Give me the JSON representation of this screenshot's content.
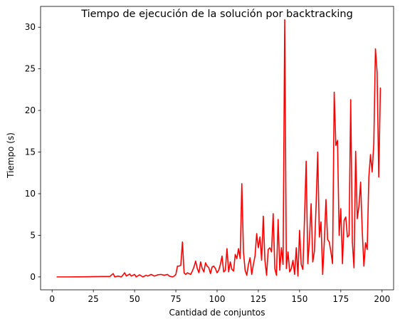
{
  "chart_data": {
    "type": "line",
    "title": "Tiempo de ejecución de la solución por backtracking",
    "xlabel": "Cantidad de conjuntos",
    "ylabel": "Tiempo (s)",
    "xlim": [
      -7,
      207
    ],
    "ylim": [
      -1.55,
      32.5
    ],
    "xticks": [
      0,
      25,
      50,
      75,
      100,
      125,
      150,
      175,
      200
    ],
    "yticks": [
      0,
      5,
      10,
      15,
      20,
      25,
      30
    ],
    "grid": false,
    "series": [
      {
        "color": "#ff0000",
        "points": [
          [
            3,
            0.0
          ],
          [
            10,
            0.0
          ],
          [
            20,
            0.02
          ],
          [
            30,
            0.05
          ],
          [
            35,
            0.05
          ],
          [
            37,
            0.4
          ],
          [
            38,
            0.0
          ],
          [
            40,
            0.1
          ],
          [
            42,
            0.0
          ],
          [
            44,
            0.5
          ],
          [
            45,
            0.1
          ],
          [
            47,
            0.35
          ],
          [
            48,
            0.1
          ],
          [
            50,
            0.3
          ],
          [
            51,
            0.0
          ],
          [
            53,
            0.25
          ],
          [
            55,
            0.0
          ],
          [
            57,
            0.2
          ],
          [
            58,
            0.1
          ],
          [
            60,
            0.3
          ],
          [
            62,
            0.1
          ],
          [
            64,
            0.25
          ],
          [
            66,
            0.3
          ],
          [
            68,
            0.2
          ],
          [
            70,
            0.3
          ],
          [
            71,
            0.1
          ],
          [
            73,
            0.0
          ],
          [
            74,
            0.1
          ],
          [
            75,
            0.3
          ],
          [
            76,
            1.3
          ],
          [
            77,
            1.3
          ],
          [
            78,
            1.4
          ],
          [
            79,
            4.2
          ],
          [
            80,
            0.5
          ],
          [
            81,
            0.3
          ],
          [
            82,
            0.5
          ],
          [
            84,
            0.3
          ],
          [
            85,
            0.7
          ],
          [
            86,
            1.2
          ],
          [
            87,
            1.9
          ],
          [
            88,
            1.0
          ],
          [
            89,
            0.5
          ],
          [
            90,
            1.8
          ],
          [
            91,
            1.0
          ],
          [
            92,
            0.6
          ],
          [
            93,
            1.7
          ],
          [
            94,
            1.3
          ],
          [
            95,
            1.1
          ],
          [
            96,
            0.4
          ],
          [
            97,
            1.2
          ],
          [
            98,
            1.3
          ],
          [
            99,
            1.0
          ],
          [
            100,
            0.5
          ],
          [
            101,
            0.8
          ],
          [
            102,
            1.5
          ],
          [
            103,
            2.5
          ],
          [
            104,
            0.6
          ],
          [
            105,
            0.8
          ],
          [
            106,
            3.4
          ],
          [
            107,
            0.6
          ],
          [
            108,
            1.8
          ],
          [
            109,
            0.9
          ],
          [
            110,
            0.7
          ],
          [
            111,
            2.7
          ],
          [
            112,
            2.2
          ],
          [
            113,
            3.4
          ],
          [
            114,
            2.2
          ],
          [
            115,
            11.2
          ],
          [
            116,
            3.0
          ],
          [
            117,
            0.8
          ],
          [
            118,
            0.2
          ],
          [
            119,
            1.5
          ],
          [
            120,
            2.3
          ],
          [
            121,
            0.3
          ],
          [
            122,
            1.5
          ],
          [
            123,
            2.5
          ],
          [
            124,
            5.2
          ],
          [
            125,
            3.5
          ],
          [
            126,
            4.8
          ],
          [
            127,
            2.0
          ],
          [
            128,
            7.3
          ],
          [
            129,
            2.0
          ],
          [
            130,
            0.2
          ],
          [
            131,
            3.3
          ],
          [
            132,
            3.5
          ],
          [
            133,
            3.0
          ],
          [
            134,
            7.6
          ],
          [
            135,
            1.0
          ],
          [
            136,
            0.2
          ],
          [
            137,
            6.9
          ],
          [
            138,
            0.8
          ],
          [
            139,
            3.5
          ],
          [
            140,
            1.5
          ],
          [
            141,
            30.9
          ],
          [
            142,
            1.0
          ],
          [
            143,
            3.0
          ],
          [
            144,
            0.6
          ],
          [
            145,
            1.0
          ],
          [
            146,
            2.0
          ],
          [
            147,
            0.3
          ],
          [
            148,
            3.5
          ],
          [
            149,
            0.1
          ],
          [
            150,
            5.6
          ],
          [
            151,
            1.5
          ],
          [
            152,
            0.9
          ],
          [
            153,
            7.0
          ],
          [
            154,
            13.9
          ],
          [
            155,
            1.6
          ],
          [
            156,
            4.5
          ],
          [
            157,
            8.8
          ],
          [
            158,
            1.8
          ],
          [
            159,
            3.1
          ],
          [
            160,
            8.5
          ],
          [
            161,
            15.0
          ],
          [
            162,
            4.8
          ],
          [
            163,
            6.6
          ],
          [
            164,
            0.3
          ],
          [
            165,
            4.2
          ],
          [
            166,
            9.3
          ],
          [
            167,
            4.5
          ],
          [
            168,
            4.2
          ],
          [
            169,
            3.0
          ],
          [
            170,
            1.6
          ],
          [
            171,
            22.2
          ],
          [
            172,
            15.8
          ],
          [
            173,
            16.4
          ],
          [
            174,
            5.0
          ],
          [
            175,
            8.2
          ],
          [
            176,
            1.6
          ],
          [
            177,
            6.8
          ],
          [
            178,
            7.2
          ],
          [
            179,
            4.8
          ],
          [
            180,
            5.0
          ],
          [
            181,
            21.3
          ],
          [
            182,
            4.2
          ],
          [
            183,
            1.1
          ],
          [
            184,
            15.1
          ],
          [
            185,
            7.0
          ],
          [
            186,
            8.5
          ],
          [
            187,
            11.4
          ],
          [
            188,
            5.5
          ],
          [
            189,
            1.3
          ],
          [
            190,
            4.1
          ],
          [
            191,
            3.3
          ],
          [
            192,
            12.0
          ],
          [
            193,
            14.7
          ],
          [
            194,
            12.6
          ],
          [
            195,
            16.0
          ],
          [
            196,
            27.4
          ],
          [
            197,
            24.6
          ],
          [
            198,
            12.0
          ],
          [
            199,
            22.7
          ]
        ]
      }
    ]
  }
}
